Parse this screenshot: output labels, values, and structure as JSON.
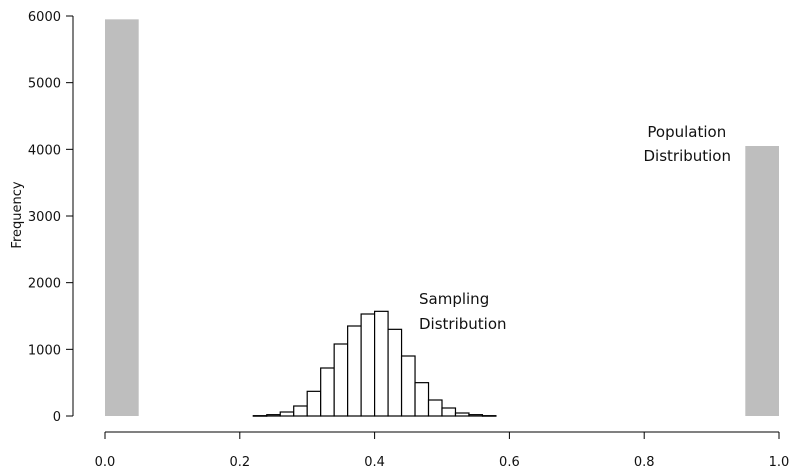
{
  "chart_data": {
    "type": "bar",
    "ylabel": "Frequency",
    "xlim": [
      0.0,
      1.0
    ],
    "ylim": [
      0,
      6000
    ],
    "x_ticks": [
      "0.0",
      "0.2",
      "0.4",
      "0.6",
      "0.8",
      "1.0"
    ],
    "y_ticks": [
      "0",
      "1000",
      "2000",
      "3000",
      "4000",
      "5000",
      "6000"
    ],
    "grid": false,
    "colors": {
      "population": "#bebebe",
      "sampling_fill": "#ffffff",
      "sampling_stroke": "#000000",
      "axis": "#000000"
    },
    "series": [
      {
        "name": "Population Distribution",
        "bins": [
          {
            "x0": 0.0,
            "x1": 0.05,
            "value": 5950
          },
          {
            "x0": 0.95,
            "x1": 1.0,
            "value": 4050
          }
        ]
      },
      {
        "name": "Sampling Distribution",
        "bins": [
          {
            "x0": 0.22,
            "x1": 0.24,
            "value": 5
          },
          {
            "x0": 0.24,
            "x1": 0.26,
            "value": 20
          },
          {
            "x0": 0.26,
            "x1": 0.28,
            "value": 60
          },
          {
            "x0": 0.28,
            "x1": 0.3,
            "value": 150
          },
          {
            "x0": 0.3,
            "x1": 0.32,
            "value": 370
          },
          {
            "x0": 0.32,
            "x1": 0.34,
            "value": 720
          },
          {
            "x0": 0.34,
            "x1": 0.36,
            "value": 1080
          },
          {
            "x0": 0.36,
            "x1": 0.38,
            "value": 1350
          },
          {
            "x0": 0.38,
            "x1": 0.4,
            "value": 1530
          },
          {
            "x0": 0.4,
            "x1": 0.42,
            "value": 1570
          },
          {
            "x0": 0.42,
            "x1": 0.44,
            "value": 1300
          },
          {
            "x0": 0.44,
            "x1": 0.46,
            "value": 900
          },
          {
            "x0": 0.46,
            "x1": 0.48,
            "value": 500
          },
          {
            "x0": 0.48,
            "x1": 0.5,
            "value": 240
          },
          {
            "x0": 0.5,
            "x1": 0.52,
            "value": 120
          },
          {
            "x0": 0.52,
            "x1": 0.54,
            "value": 45
          },
          {
            "x0": 0.54,
            "x1": 0.56,
            "value": 20
          },
          {
            "x0": 0.56,
            "x1": 0.58,
            "value": 5
          }
        ]
      }
    ],
    "annotations": [
      {
        "lines": [
          "Population",
          "Distribution"
        ]
      },
      {
        "lines": [
          "Sampling",
          "Distribution"
        ]
      }
    ]
  }
}
